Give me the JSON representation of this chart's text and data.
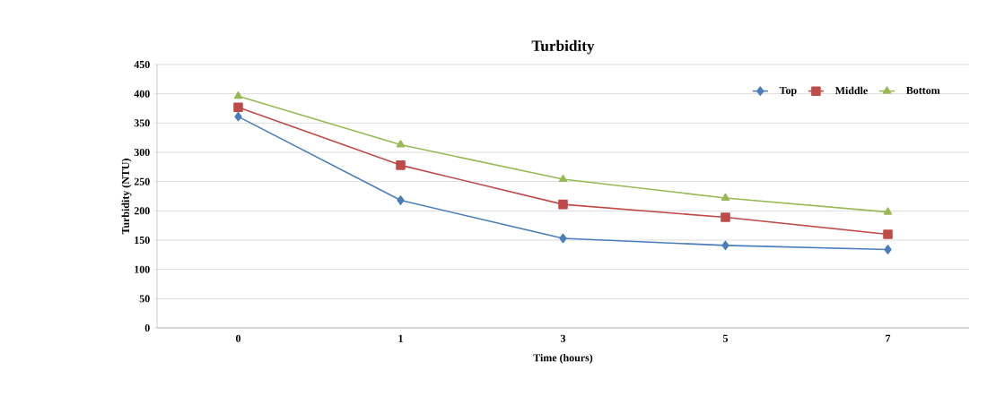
{
  "chart_data": {
    "type": "line",
    "title": "Turbidity",
    "xlabel": "Time (hours)",
    "ylabel": "Turbidity (NTU)",
    "categories": [
      "0",
      "1",
      "3",
      "5",
      "7"
    ],
    "series": [
      {
        "name": "Top",
        "color": "#4a7ebb",
        "marker": "diamond",
        "values": [
          361,
          218,
          153,
          141,
          134
        ]
      },
      {
        "name": "Middle",
        "color": "#be4b48",
        "marker": "square",
        "values": [
          377,
          278,
          211,
          189,
          160
        ]
      },
      {
        "name": "Bottom",
        "color": "#98b954",
        "marker": "triangle",
        "values": [
          396,
          313,
          254,
          222,
          198
        ]
      }
    ],
    "ylim": [
      0,
      450
    ],
    "yticks": [
      0,
      50,
      100,
      150,
      200,
      250,
      300,
      350,
      400,
      450
    ],
    "grid": "y",
    "legend": "top right",
    "line_style": "solid"
  }
}
